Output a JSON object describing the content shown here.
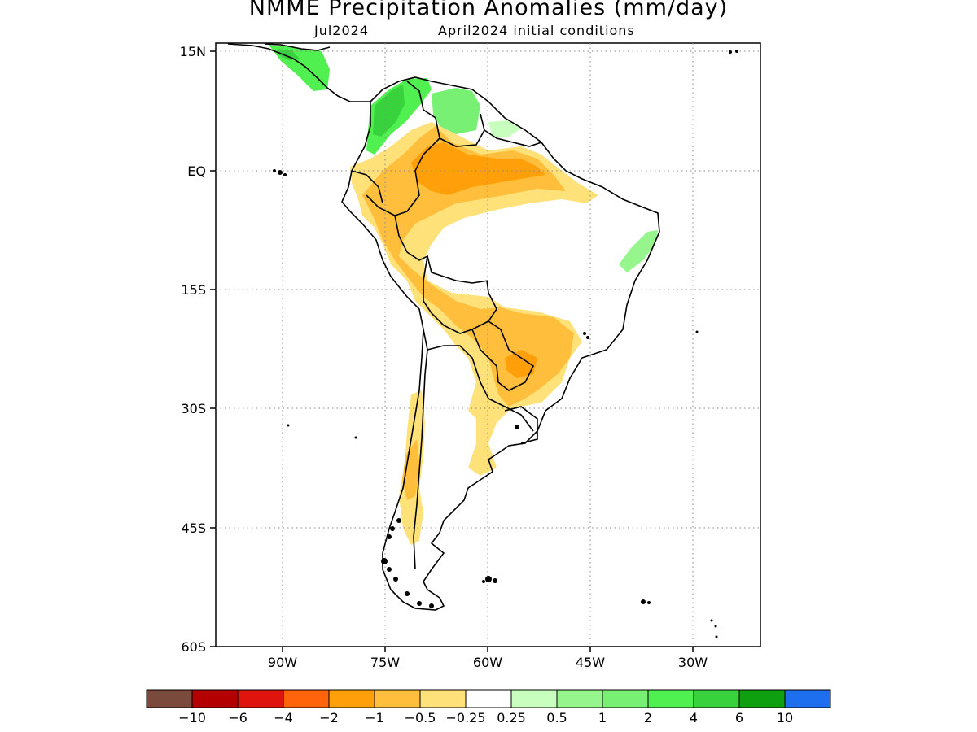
{
  "title": "NMME Precipitation Anomalies (mm/day)",
  "subtitle_left": "Jul2024",
  "subtitle_right": "April2024 initial conditions",
  "lat_ticks": [
    {
      "label": "15N",
      "lat": 15
    },
    {
      "label": "EQ",
      "lat": 0
    },
    {
      "label": "15S",
      "lat": -15
    },
    {
      "label": "30S",
      "lat": -30
    },
    {
      "label": "45S",
      "lat": -45
    },
    {
      "label": "60S",
      "lat": -60
    }
  ],
  "lon_ticks": [
    {
      "label": "90W",
      "lon": -90
    },
    {
      "label": "75W",
      "lon": -75
    },
    {
      "label": "60W",
      "lon": -60
    },
    {
      "label": "45W",
      "lon": -45
    },
    {
      "label": "30W",
      "lon": -30
    }
  ],
  "map_extent": {
    "lon_min": -100,
    "lon_max": -20,
    "lat_min": -60,
    "lat_max": 16
  },
  "grid": true,
  "colorbar": {
    "colors": [
      "#7a4a3c",
      "#b50000",
      "#e0140f",
      "#ff640a",
      "#ffa00a",
      "#ffbf3c",
      "#ffe17a",
      "#ffffff",
      "#c8ffbe",
      "#96f58c",
      "#78f073",
      "#50f050",
      "#37d23c",
      "#0fa00f",
      "#1e6ef0"
    ],
    "labels": [
      "−10",
      "−6",
      "−4",
      "−2",
      "−1",
      "−0.5",
      "−0.25",
      "0.25",
      "0.5",
      "1",
      "2",
      "4",
      "6",
      "10"
    ]
  }
}
